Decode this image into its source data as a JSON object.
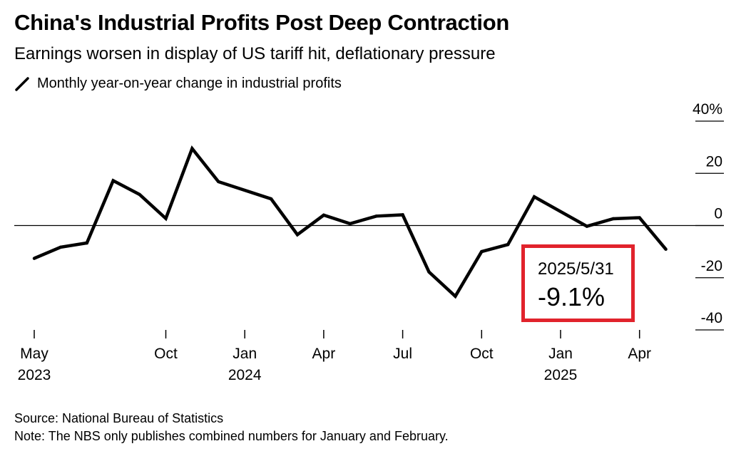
{
  "header": {
    "title": "China's Industrial Profits Post Deep Contraction",
    "subtitle": "Earnings worsen in display of US tariff hit, deflationary pressure",
    "legend_label": "Monthly year-on-year change in industrial profits"
  },
  "footer": {
    "source": "Source: National Bureau of Statistics",
    "note": "Note: The NBS only publishes combined numbers for January and February."
  },
  "callout": {
    "date": "2025/5/31",
    "value": "-9.1%",
    "border_color": "#e1232c"
  },
  "chart_data": {
    "type": "line",
    "series": [
      {
        "color": "#000000",
        "points": [
          {
            "x": "2023-05",
            "y": -12.6
          },
          {
            "x": "2023-06",
            "y": -8.3
          },
          {
            "x": "2023-07",
            "y": -6.7
          },
          {
            "x": "2023-08",
            "y": 17.2
          },
          {
            "x": "2023-09",
            "y": 11.9
          },
          {
            "x": "2023-10",
            "y": 2.7
          },
          {
            "x": "2023-11",
            "y": 29.5
          },
          {
            "x": "2023-12",
            "y": 16.8
          },
          {
            "x": "2024-02",
            "y": 10.2
          },
          {
            "x": "2024-03",
            "y": -3.5
          },
          {
            "x": "2024-04",
            "y": 4.0
          },
          {
            "x": "2024-05",
            "y": 0.7
          },
          {
            "x": "2024-06",
            "y": 3.6
          },
          {
            "x": "2024-07",
            "y": 4.1
          },
          {
            "x": "2024-08",
            "y": -17.8
          },
          {
            "x": "2024-09",
            "y": -27.1
          },
          {
            "x": "2024-10",
            "y": -10.0
          },
          {
            "x": "2024-11",
            "y": -7.3
          },
          {
            "x": "2024-12",
            "y": 11.0
          },
          {
            "x": "2025-02",
            "y": -0.3
          },
          {
            "x": "2025-03",
            "y": 2.6
          },
          {
            "x": "2025-04",
            "y": 3.0
          },
          {
            "x": "2025-05",
            "y": -9.1
          }
        ]
      }
    ],
    "yaxis": {
      "min": -40,
      "max": 40,
      "ticks": [
        {
          "value": 40,
          "label": "40%"
        },
        {
          "value": 20,
          "label": "20"
        },
        {
          "value": 0,
          "label": "0"
        },
        {
          "value": -20,
          "label": "-20"
        },
        {
          "value": -40,
          "label": "-40"
        }
      ]
    },
    "xaxis": {
      "ticks": [
        {
          "x": "2023-05",
          "label": "May",
          "year": "2023"
        },
        {
          "x": "2023-10",
          "label": "Oct",
          "year": ""
        },
        {
          "x": "2024-01",
          "label": "Jan",
          "year": "2024"
        },
        {
          "x": "2024-04",
          "label": "Apr",
          "year": ""
        },
        {
          "x": "2024-07",
          "label": "Jul",
          "year": ""
        },
        {
          "x": "2024-10",
          "label": "Oct",
          "year": ""
        },
        {
          "x": "2025-01",
          "label": "Jan",
          "year": "2025"
        },
        {
          "x": "2025-04",
          "label": "Apr",
          "year": ""
        }
      ]
    }
  }
}
